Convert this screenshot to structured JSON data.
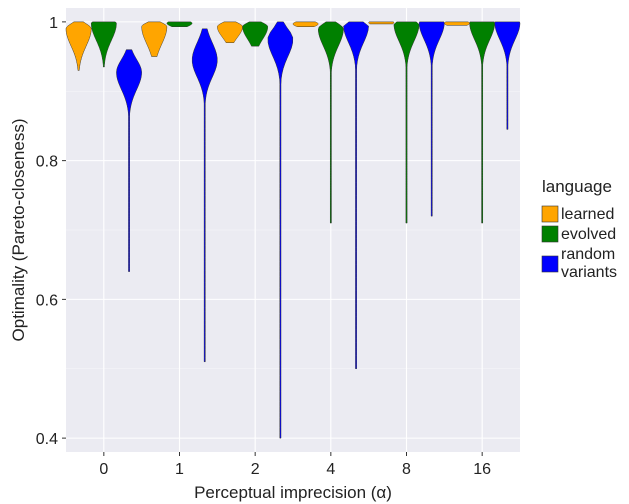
{
  "chart_data": {
    "type": "violin",
    "title": "",
    "xlabel": "Perceptual imprecision (α)",
    "ylabel": "Optimality (Pareto-closeness)",
    "categories": [
      "0",
      "1",
      "2",
      "4",
      "8",
      "16"
    ],
    "y_ticks": [
      "0.4",
      "0.6",
      "0.8",
      "1"
    ],
    "ylim": [
      0.38,
      1.02
    ],
    "grid": true,
    "legend": {
      "title": "language",
      "position": "right",
      "entries": [
        {
          "label": "learned",
          "color": "#FFA500"
        },
        {
          "label": "evolved",
          "color": "#008000"
        },
        {
          "label": "random variants",
          "color": "#0000FF"
        }
      ]
    },
    "series": [
      {
        "name": "learned",
        "color": "#FFA500",
        "violins": [
          {
            "category": "0",
            "min": 0.93,
            "max": 1.0,
            "mode": 0.99
          },
          {
            "category": "1",
            "min": 0.95,
            "max": 1.0,
            "mode": 0.993
          },
          {
            "category": "2",
            "min": 0.97,
            "max": 1.0,
            "mode": 0.993
          },
          {
            "category": "4",
            "min": 0.993,
            "max": 1.0,
            "mode": 0.997
          },
          {
            "category": "8",
            "min": 0.997,
            "max": 1.0,
            "mode": 0.999
          },
          {
            "category": "16",
            "min": 0.995,
            "max": 1.0,
            "mode": 0.998
          }
        ]
      },
      {
        "name": "evolved",
        "color": "#008000",
        "violins": [
          {
            "category": "0",
            "min": 0.935,
            "max": 1.0,
            "mode": 0.998
          },
          {
            "category": "1",
            "min": 0.993,
            "max": 1.0,
            "mode": 0.998
          },
          {
            "category": "2",
            "min": 0.965,
            "max": 1.0,
            "mode": 0.993
          },
          {
            "category": "4",
            "min": 0.71,
            "max": 1.0,
            "mode": 0.99
          },
          {
            "category": "8",
            "min": 0.71,
            "max": 1.0,
            "mode": 0.997
          },
          {
            "category": "16",
            "min": 0.71,
            "max": 1.0,
            "mode": 0.999
          }
        ]
      },
      {
        "name": "random variants",
        "color": "#0000FF",
        "violins": [
          {
            "category": "0",
            "min": 0.64,
            "max": 0.96,
            "mode": 0.927
          },
          {
            "category": "1",
            "min": 0.51,
            "max": 0.99,
            "mode": 0.945
          },
          {
            "category": "2",
            "min": 0.4,
            "max": 1.0,
            "mode": 0.975
          },
          {
            "category": "4",
            "min": 0.5,
            "max": 1.0,
            "mode": 0.995
          },
          {
            "category": "8",
            "min": 0.72,
            "max": 1.0,
            "mode": 0.999
          },
          {
            "category": "16",
            "min": 0.845,
            "max": 1.0,
            "mode": 0.999
          }
        ]
      }
    ]
  }
}
